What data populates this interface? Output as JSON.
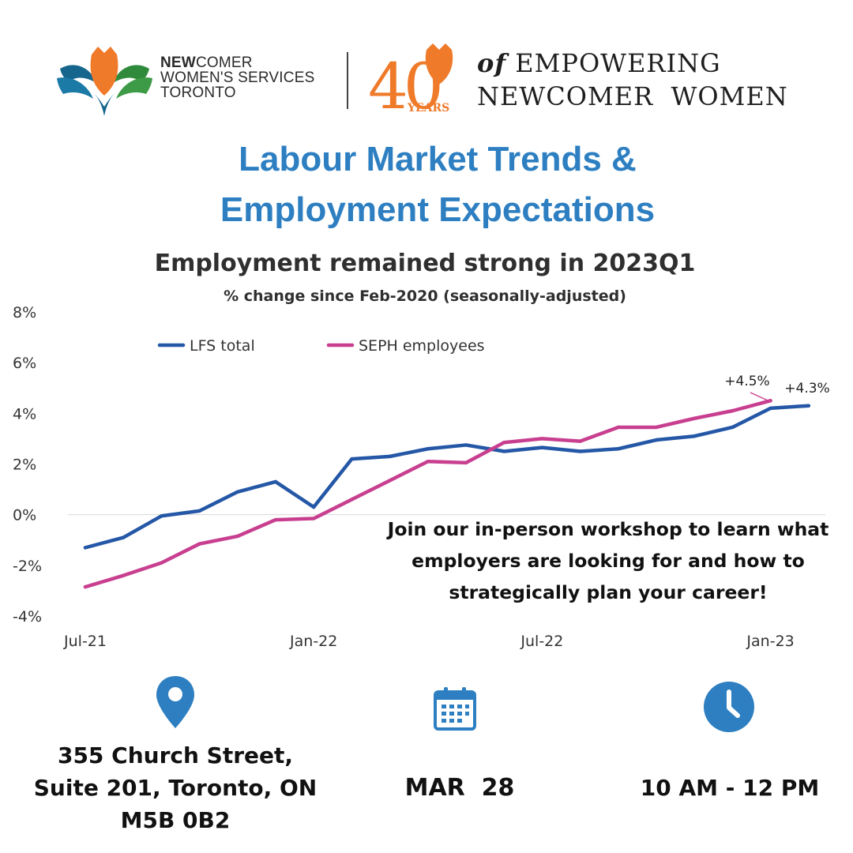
{
  "header": {
    "org_name_bold": "NEW",
    "org_name_line1_rest": "COMER",
    "org_name_line2": "WOMEN'S SERVICES",
    "org_name_line3": "TORONTO",
    "anniversary_number": "40",
    "anniversary_years": "YEARS",
    "tagline_of": "of",
    "tagline_line1": "EMPOWERING",
    "tagline_line2": "NEWCOMER  WOMEN"
  },
  "headline": {
    "line1": "Labour Market Trends &",
    "line2": "Employment Expectations"
  },
  "chart_data": {
    "type": "line",
    "title": "Employment remained strong in 2023Q1",
    "subtitle": "% change since Feb-2020 (seasonally-adjusted)",
    "x": [
      "Jul-21",
      "Aug-21",
      "Sep-21",
      "Oct-21",
      "Nov-21",
      "Dec-21",
      "Jan-22",
      "Feb-22",
      "Mar-22",
      "Apr-22",
      "May-22",
      "Jun-22",
      "Jul-22",
      "Aug-22",
      "Sep-22",
      "Oct-22",
      "Nov-22",
      "Dec-22",
      "Jan-23",
      "Feb-23"
    ],
    "x_tick_labels": [
      {
        "index": 0,
        "label": "Jul-21"
      },
      {
        "index": 6,
        "label": "Jan-22"
      },
      {
        "index": 12,
        "label": "Jul-22"
      },
      {
        "index": 18,
        "label": "Jan-23"
      }
    ],
    "y_ticks": [
      {
        "value": -4,
        "label": "-4%"
      },
      {
        "value": -2,
        "label": "-2%"
      },
      {
        "value": 0,
        "label": "0%"
      },
      {
        "value": 2,
        "label": "2%"
      },
      {
        "value": 4,
        "label": "4%"
      },
      {
        "value": 6,
        "label": "6%"
      },
      {
        "value": 8,
        "label": "8%"
      }
    ],
    "ylim": [
      -4,
      8
    ],
    "grid": "zero-line only",
    "legend_position": "top-left",
    "series": [
      {
        "name": "LFS total",
        "color": "#2457a6",
        "values": [
          -1.3,
          -0.9,
          -0.05,
          0.15,
          0.9,
          1.3,
          0.3,
          2.2,
          2.3,
          2.6,
          2.75,
          2.5,
          2.65,
          2.5,
          2.6,
          2.95,
          3.1,
          3.45,
          4.2,
          4.3
        ]
      },
      {
        "name": "SEPH employees",
        "color": "#c83f8f",
        "values": [
          -2.85,
          -2.4,
          -1.9,
          -1.15,
          -0.85,
          -0.2,
          -0.15,
          0.6,
          1.35,
          2.1,
          2.05,
          2.85,
          3.0,
          2.9,
          3.45,
          3.45,
          3.8,
          4.1,
          4.5,
          null
        ]
      }
    ],
    "annotations": [
      {
        "text": "+4.5%",
        "series": "SEPH employees",
        "index": 18
      },
      {
        "text": "+4.3%",
        "series": "LFS total",
        "index": 19
      }
    ]
  },
  "promo": {
    "line1": "Join our in-person workshop to learn what",
    "line2": "employers are looking for and how to",
    "line3": "strategically plan your career!"
  },
  "event": {
    "address_line1": "355 Church Street,",
    "address_line2": "Suite 201, Toronto, ON",
    "address_line3": "M5B 0B2",
    "date": "MAR  28",
    "time": "10 AM - 12 PM"
  },
  "colors": {
    "accent_blue": "#2d7fc1",
    "brand_orange": "#ef7a2a",
    "brand_teal": "#15658d",
    "brand_green": "#2f8a3c"
  },
  "icons": {
    "location": "map-pin-icon",
    "date": "calendar-icon",
    "time": "clock-icon"
  }
}
